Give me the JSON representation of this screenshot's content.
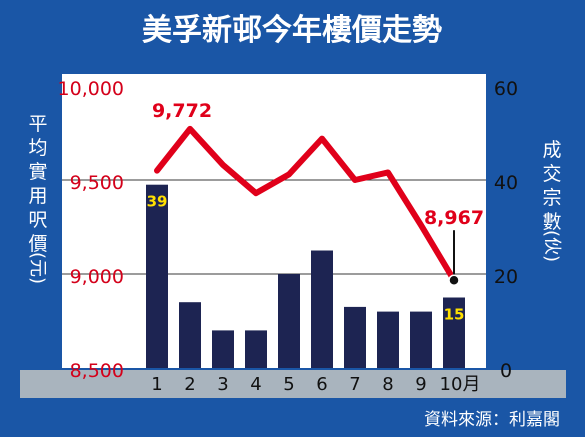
{
  "chart_data": {
    "type": "bar+line",
    "title": "美孚新邨今年樓價走勢",
    "source": "資料來源：利嘉閣",
    "categories": [
      "1",
      "2",
      "3",
      "4",
      "5",
      "6",
      "7",
      "8",
      "9",
      "10月"
    ],
    "left_axis": {
      "label_chars": [
        "平",
        "均",
        "實",
        "用",
        "呎",
        "價",
        "(元)"
      ],
      "ticks": [
        "10,000",
        "9,500",
        "9,000",
        "8,500"
      ],
      "range": [
        8500,
        10000
      ]
    },
    "right_axis": {
      "label_chars": [
        "成",
        "交",
        "宗",
        "數",
        "(伙)"
      ],
      "ticks": [
        "60",
        "40",
        "20",
        "0"
      ],
      "range": [
        0,
        60
      ]
    },
    "series": [
      {
        "name": "成交宗數",
        "chart_type": "bar",
        "axis": "right",
        "values": [
          39,
          14,
          8,
          8,
          20,
          25,
          13,
          12,
          12,
          15
        ],
        "value_labels": [
          "39",
          "",
          "",
          "",
          "",
          "",
          "",
          "",
          "",
          "15"
        ]
      },
      {
        "name": "平均實用呎價",
        "chart_type": "line",
        "axis": "left",
        "values": [
          9550,
          9772,
          9580,
          9430,
          9530,
          9720,
          9500,
          9540,
          9260,
          8967
        ],
        "value_labels": [
          "",
          "9,772",
          "",
          "",
          "",
          "",
          "",
          "",
          "",
          "8,967"
        ]
      }
    ],
    "colors": {
      "frame": "#1a56a6",
      "plot_bg": "#ffffff",
      "bar": "#1d2452",
      "line": "#e0001a",
      "tick_left": "#d4001a",
      "tick_right": "#111111",
      "bar_label": "#ffe000",
      "category_strip": "#a9b4be",
      "grid": "#3a3a3a"
    },
    "grid": true
  }
}
